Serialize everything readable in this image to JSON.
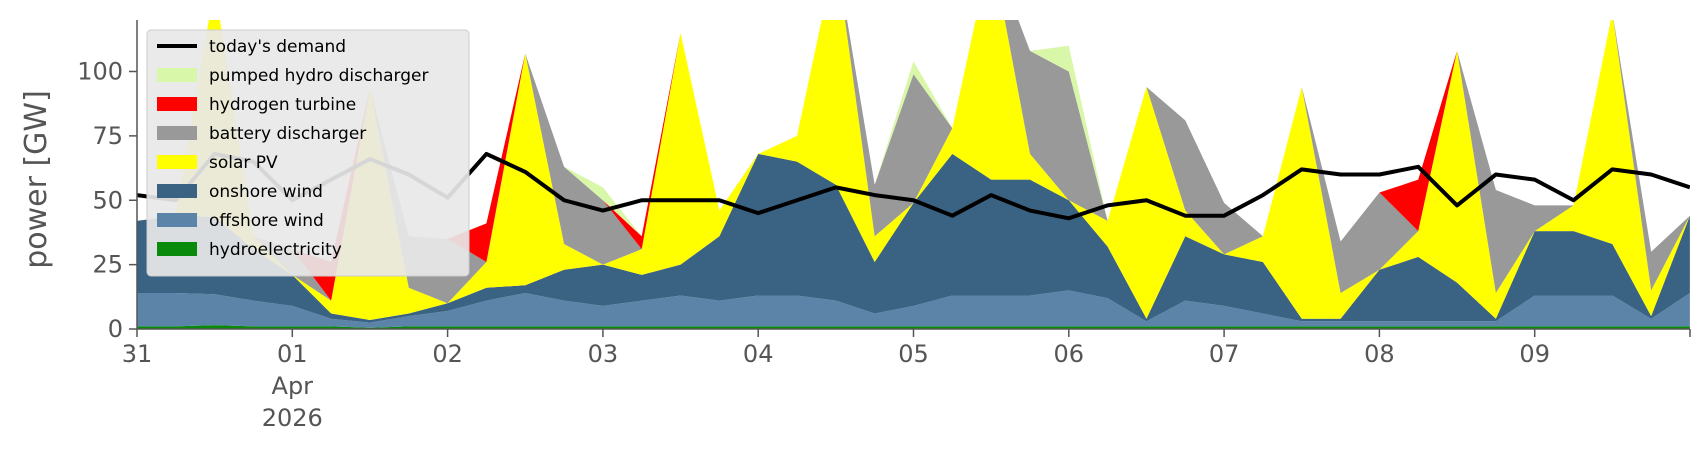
{
  "chart_data": {
    "type": "area",
    "ylabel": "power [GW]",
    "ylim": [
      0,
      120
    ],
    "yticks": [
      0,
      25,
      50,
      75,
      100
    ],
    "xlim": [
      "2026-03-31T00:00",
      "2026-04-09T24:00"
    ],
    "xticks": [
      {
        "x": "2026-03-31T00:00",
        "label": "31",
        "sublabel": ""
      },
      {
        "x": "2026-04-01T00:00",
        "label": "01",
        "sublabel": "Apr\n2026"
      },
      {
        "x": "2026-04-02T00:00",
        "label": "02",
        "sublabel": ""
      },
      {
        "x": "2026-04-03T00:00",
        "label": "03",
        "sublabel": ""
      },
      {
        "x": "2026-04-04T00:00",
        "label": "04",
        "sublabel": ""
      },
      {
        "x": "2026-04-05T00:00",
        "label": "05",
        "sublabel": ""
      },
      {
        "x": "2026-04-06T00:00",
        "label": "06",
        "sublabel": ""
      },
      {
        "x": "2026-04-07T00:00",
        "label": "07",
        "sublabel": ""
      },
      {
        "x": "2026-04-08T00:00",
        "label": "08",
        "sublabel": ""
      },
      {
        "x": "2026-04-09T00:00",
        "label": "09",
        "sublabel": ""
      }
    ],
    "grid": false,
    "legend_position": "top-left",
    "legend": [
      {
        "name": "today's demand",
        "color": "#000000",
        "kind": "line"
      },
      {
        "name": "pumped hydro discharger",
        "color": "#d9f7a8",
        "kind": "patch"
      },
      {
        "name": "hydrogen turbine",
        "color": "#ff0000",
        "kind": "patch"
      },
      {
        "name": "battery discharger",
        "color": "#999999",
        "kind": "patch"
      },
      {
        "name": "solar PV",
        "color": "#ffff00",
        "kind": "patch"
      },
      {
        "name": "onshore wind",
        "color": "#3a6282",
        "kind": "patch"
      },
      {
        "name": "offshore wind",
        "color": "#5b84a8",
        "kind": "patch"
      },
      {
        "name": "hydroelectricity",
        "color": "#0a8a0a",
        "kind": "patch"
      }
    ],
    "x": [
      "2026-03-31T00:00",
      "2026-03-31T06:00",
      "2026-03-31T12:00",
      "2026-03-31T18:00",
      "2026-04-01T00:00",
      "2026-04-01T06:00",
      "2026-04-01T12:00",
      "2026-04-01T18:00",
      "2026-04-02T00:00",
      "2026-04-02T06:00",
      "2026-04-02T12:00",
      "2026-04-02T18:00",
      "2026-04-03T00:00",
      "2026-04-03T06:00",
      "2026-04-03T12:00",
      "2026-04-03T18:00",
      "2026-04-04T00:00",
      "2026-04-04T06:00",
      "2026-04-04T12:00",
      "2026-04-04T18:00",
      "2026-04-05T00:00",
      "2026-04-05T06:00",
      "2026-04-05T12:00",
      "2026-04-05T18:00",
      "2026-04-06T00:00",
      "2026-04-06T06:00",
      "2026-04-06T12:00",
      "2026-04-06T18:00",
      "2026-04-07T00:00",
      "2026-04-07T06:00",
      "2026-04-07T12:00",
      "2026-04-07T18:00",
      "2026-04-08T00:00",
      "2026-04-08T06:00",
      "2026-04-08T12:00",
      "2026-04-08T18:00",
      "2026-04-09T00:00",
      "2026-04-09T06:00",
      "2026-04-09T12:00",
      "2026-04-09T18:00",
      "2026-04-09T24:00"
    ],
    "series": [
      {
        "name": "hydroelectricity",
        "color": "#0a8a0a",
        "values": [
          1,
          1,
          1.5,
          1,
          1,
          1,
          0.5,
          1,
          1,
          1,
          1,
          1,
          1,
          1,
          1,
          1,
          1,
          1,
          1,
          1,
          1,
          1,
          1,
          1,
          1,
          1,
          1,
          1,
          1,
          1,
          1,
          1,
          1,
          1,
          1,
          1,
          1,
          1,
          1,
          1,
          1
        ]
      },
      {
        "name": "offshore wind",
        "color": "#5b84a8",
        "values": [
          13,
          13,
          12,
          10,
          8,
          3,
          2,
          4,
          6,
          10,
          13,
          10,
          8,
          10,
          12,
          10,
          12,
          12,
          10,
          5,
          8,
          12,
          12,
          12,
          14,
          11,
          2,
          10,
          8,
          5,
          2,
          2,
          2,
          2,
          2,
          2,
          12,
          12,
          12,
          3,
          13
        ]
      },
      {
        "name": "onshore wind",
        "color": "#3a6282",
        "values": [
          28,
          30,
          30,
          20,
          12,
          2,
          1,
          1,
          3,
          5,
          3,
          12,
          16,
          10,
          12,
          25,
          55,
          52,
          45,
          20,
          40,
          55,
          45,
          45,
          35,
          20,
          1,
          25,
          20,
          20,
          1,
          1,
          20,
          25,
          15,
          1,
          25,
          25,
          20,
          1,
          30
        ]
      },
      {
        "name": "solar PV",
        "color": "#ffff00",
        "values": [
          0,
          0,
          90,
          5,
          0,
          5,
          90,
          10,
          0,
          10,
          90,
          10,
          0,
          10,
          90,
          10,
          0,
          10,
          90,
          10,
          0,
          10,
          90,
          10,
          0,
          10,
          90,
          10,
          0,
          10,
          90,
          10,
          0,
          10,
          90,
          10,
          0,
          10,
          90,
          10,
          0
        ]
      },
      {
        "name": "battery discharger",
        "color": "#999999",
        "values": [
          0,
          0,
          0,
          0,
          10,
          0,
          0,
          20,
          25,
          0,
          0,
          30,
          25,
          0,
          0,
          0,
          0,
          0,
          0,
          20,
          50,
          0,
          0,
          40,
          50,
          0,
          0,
          35,
          20,
          0,
          0,
          20,
          30,
          0,
          0,
          40,
          10,
          0,
          0,
          15,
          0
        ]
      },
      {
        "name": "hydrogen turbine",
        "color": "#ff0000",
        "values": [
          0,
          0,
          0,
          0,
          0,
          15,
          0,
          0,
          0,
          15,
          0,
          0,
          0,
          5,
          0,
          0,
          0,
          0,
          0,
          0,
          0,
          0,
          0,
          0,
          0,
          0,
          0,
          0,
          0,
          0,
          0,
          0,
          0,
          20,
          0,
          0,
          0,
          0,
          0,
          0,
          0
        ]
      },
      {
        "name": "pumped hydro discharger",
        "color": "#d9f7a8",
        "values": [
          0,
          0,
          0,
          0,
          0,
          0,
          0,
          0,
          0,
          0,
          0,
          0,
          5,
          0,
          0,
          0,
          0,
          0,
          0,
          0,
          5,
          0,
          0,
          0,
          10,
          0,
          0,
          0,
          0,
          0,
          0,
          0,
          0,
          0,
          0,
          0,
          0,
          0,
          0,
          0,
          0
        ]
      },
      {
        "name": "today's demand",
        "color": "#000000",
        "kind": "line",
        "values": [
          52,
          50,
          68,
          65,
          50,
          58,
          66,
          60,
          51,
          68,
          61,
          50,
          46,
          50,
          50,
          50,
          45,
          50,
          55,
          52,
          50,
          44,
          52,
          46,
          43,
          48,
          50,
          44,
          44,
          52,
          62,
          60,
          60,
          63,
          48,
          60,
          58,
          50,
          62,
          60,
          55
        ]
      }
    ]
  }
}
